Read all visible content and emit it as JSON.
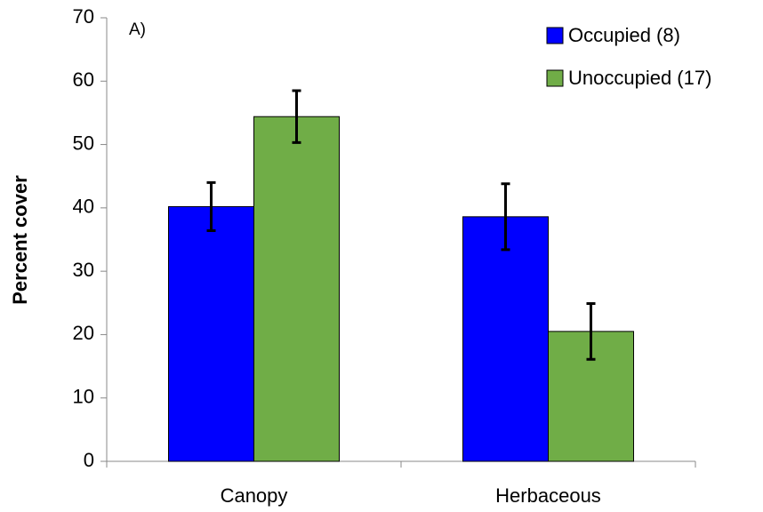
{
  "chart_data": {
    "type": "bar",
    "annotation": "A)",
    "ylabel": "Percent cover",
    "categories": [
      "Canopy",
      "Herbaceous"
    ],
    "series": [
      {
        "name": "Occupied (8)",
        "color": "#0000ff",
        "values": [
          40.2,
          38.6
        ],
        "errors": [
          3.8,
          5.2
        ]
      },
      {
        "name": "Unoccupied (17)",
        "color": "#70ad47",
        "values": [
          54.4,
          20.5
        ],
        "errors": [
          4.1,
          4.4
        ]
      }
    ],
    "ylim": [
      0,
      70
    ],
    "yticks": [
      0,
      10,
      20,
      30,
      40,
      50,
      60,
      70
    ],
    "legend": "upper right"
  }
}
